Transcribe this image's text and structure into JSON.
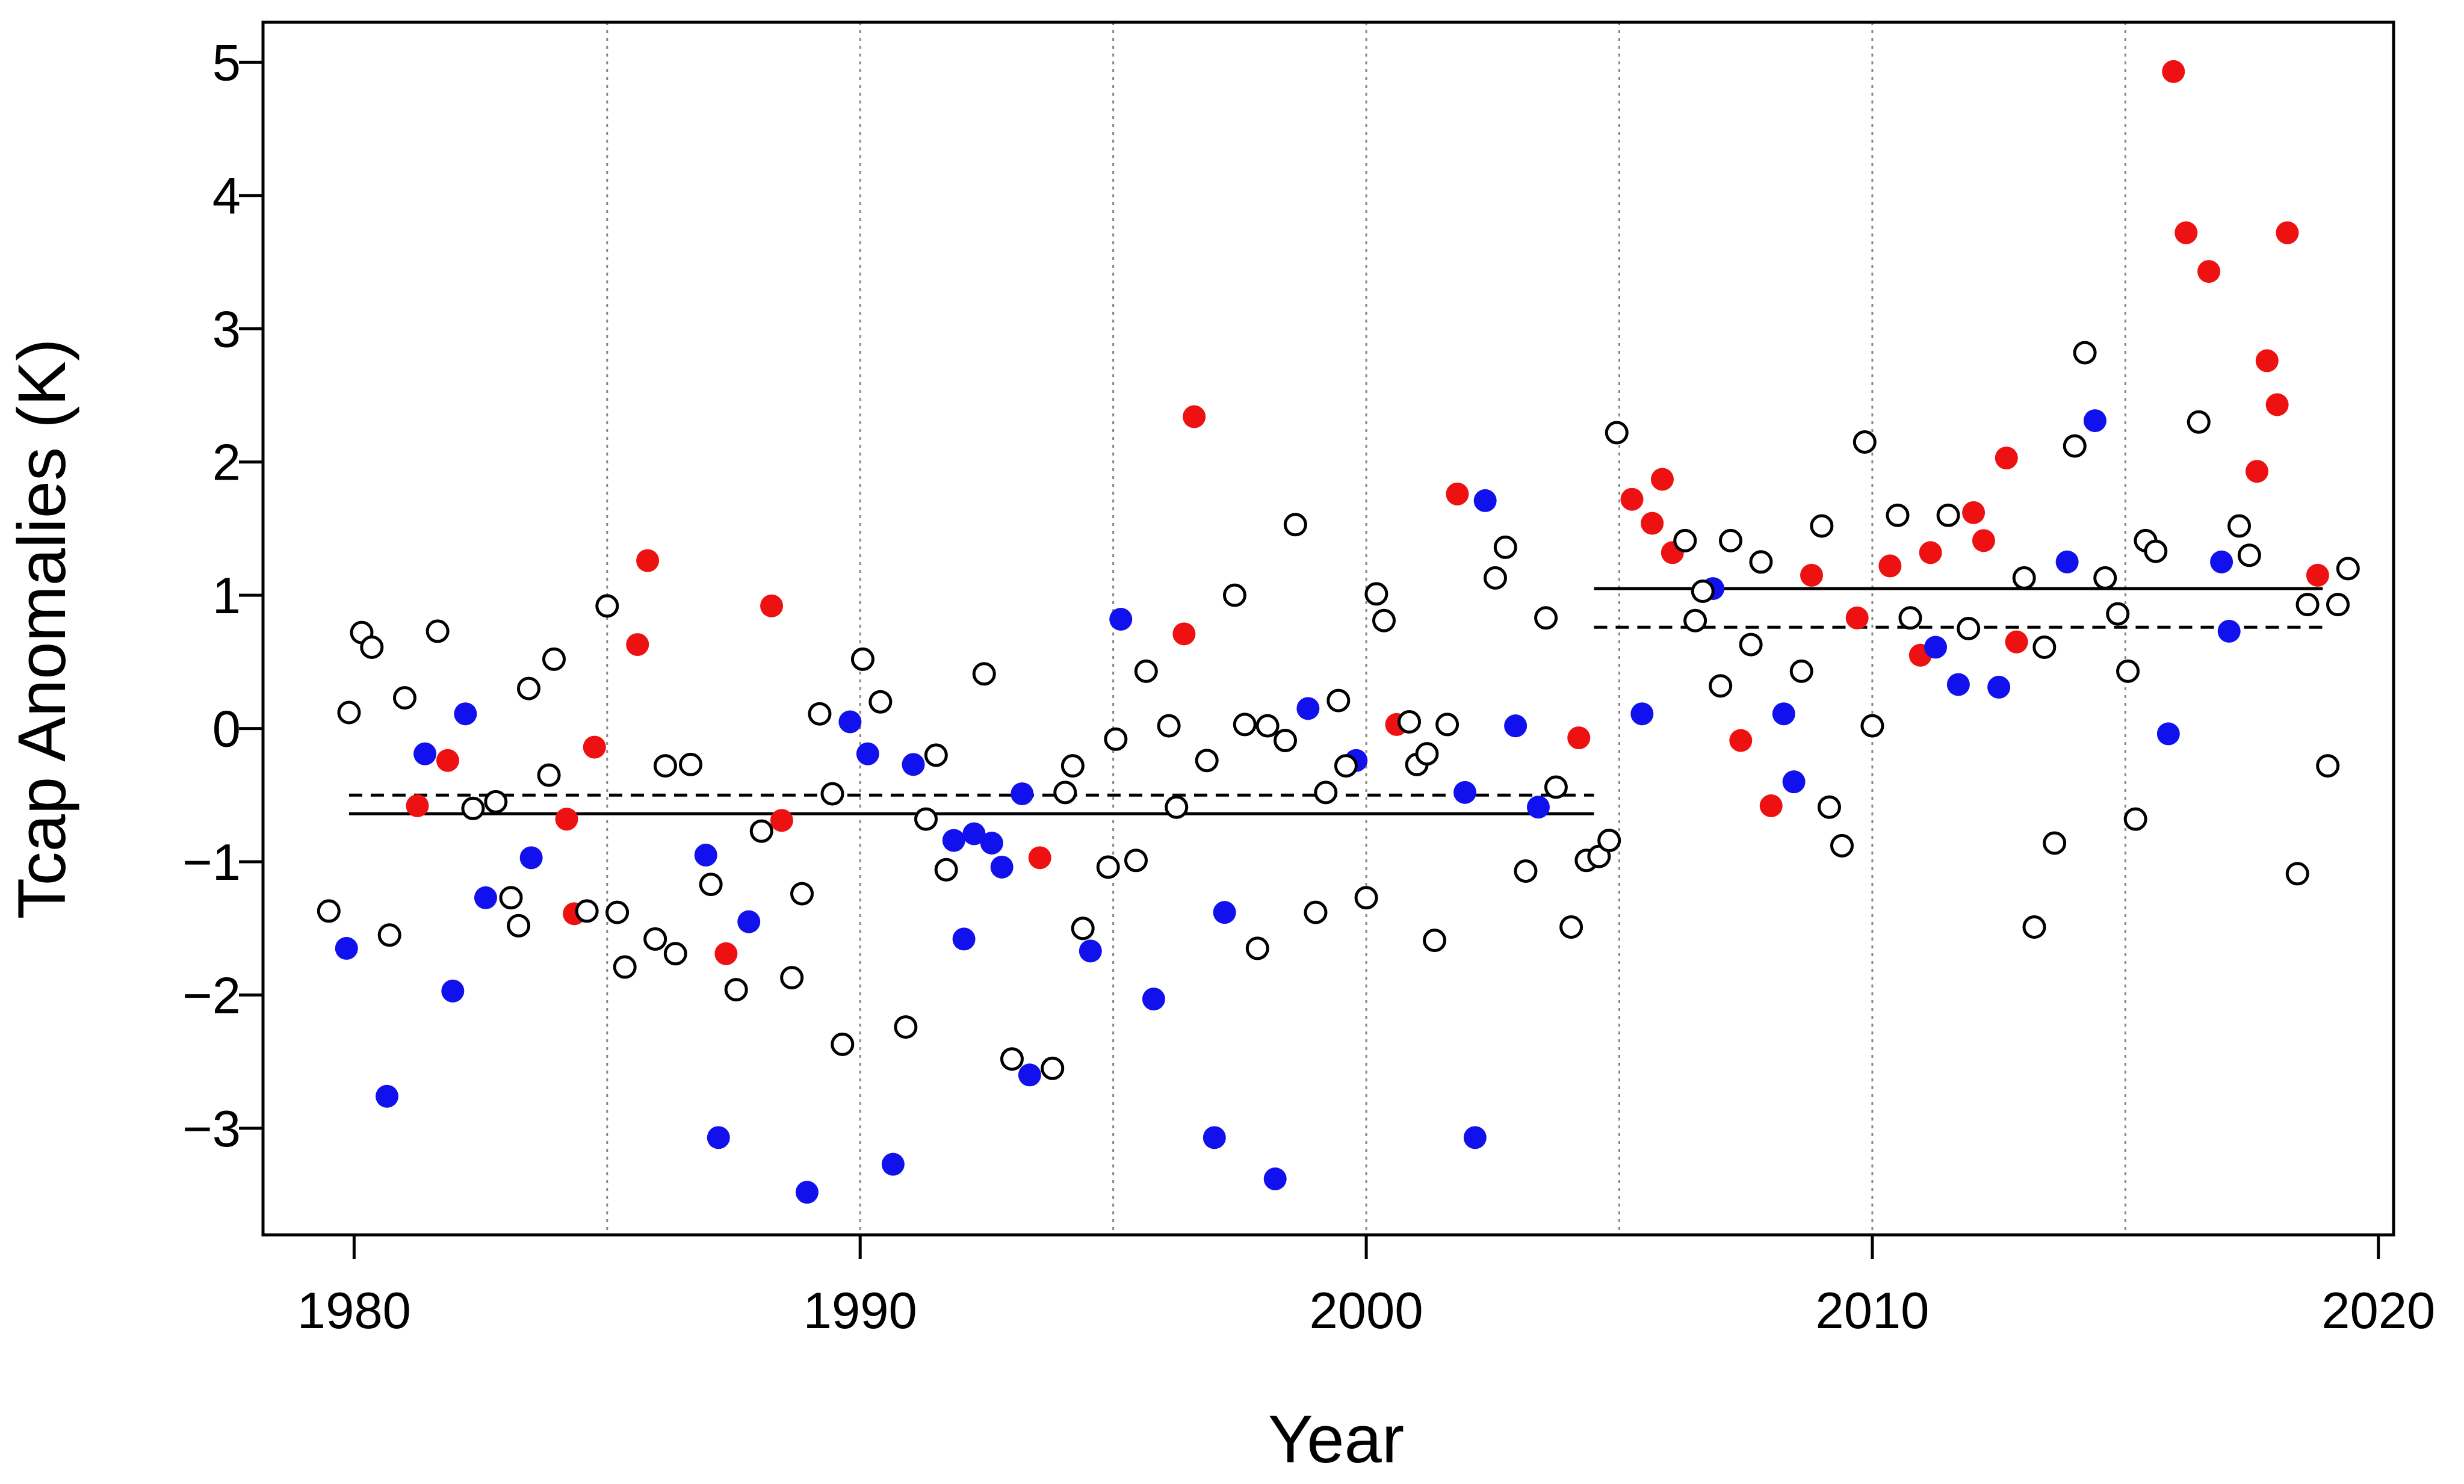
{
  "chart_data": {
    "type": "scatter",
    "xlabel": "Year",
    "ylabel": "Tcap Anomalies (K)",
    "xlim": [
      1978.2,
      2020.3
    ],
    "ylim": [
      -3.8,
      5.3
    ],
    "x_ticks": [
      "1980",
      "1990",
      "2000",
      "2010",
      "2020"
    ],
    "y_ticks": [
      "5",
      "4",
      "3",
      "2",
      "1",
      "0",
      "−1",
      "−2",
      "−3"
    ],
    "grid": "vertical dotted at 1985, 1990, 1995, 2000, 2005, 2010, 2015",
    "colors": {
      "red": "#ee1111",
      "blue": "#1111ee",
      "open": "#000000"
    },
    "series": [
      {
        "style": "red-filled",
        "points": [
          [
            1981.25,
            -0.58
          ],
          [
            1981.85,
            -0.24
          ],
          [
            1984.2,
            -0.68
          ],
          [
            1984.35,
            -1.39
          ],
          [
            1984.75,
            -0.14
          ],
          [
            1985.6,
            0.63
          ],
          [
            1985.8,
            1.26
          ],
          [
            1987.35,
            -1.69
          ],
          [
            1988.25,
            0.92
          ],
          [
            1988.45,
            -0.69
          ],
          [
            1993.55,
            -0.97
          ],
          [
            1996.4,
            0.71
          ],
          [
            1996.6,
            2.34
          ],
          [
            2000.6,
            0.03
          ],
          [
            2001.8,
            1.76
          ],
          [
            2004.2,
            -0.07
          ],
          [
            2005.25,
            1.72
          ],
          [
            2005.65,
            1.54
          ],
          [
            2005.85,
            1.87
          ],
          [
            2006.05,
            1.32
          ],
          [
            2007.4,
            -0.09
          ],
          [
            2008.0,
            -0.58
          ],
          [
            2008.8,
            1.15
          ],
          [
            2009.7,
            0.83
          ],
          [
            2010.35,
            1.22
          ],
          [
            2010.95,
            0.55
          ],
          [
            2011.15,
            1.32
          ],
          [
            2012.0,
            1.62
          ],
          [
            2012.2,
            1.41
          ],
          [
            2012.65,
            2.03
          ],
          [
            2012.85,
            0.65
          ],
          [
            2015.95,
            4.93
          ],
          [
            2016.2,
            3.72
          ],
          [
            2016.65,
            3.43
          ],
          [
            2017.6,
            1.93
          ],
          [
            2017.8,
            2.76
          ],
          [
            2018.0,
            2.43
          ],
          [
            2018.2,
            3.72
          ],
          [
            2018.8,
            1.15
          ]
        ]
      },
      {
        "style": "blue-filled",
        "points": [
          [
            1979.85,
            -1.65
          ],
          [
            1980.65,
            -2.76
          ],
          [
            1981.4,
            -0.19
          ],
          [
            1981.95,
            -1.97
          ],
          [
            1982.2,
            0.11
          ],
          [
            1982.6,
            -1.27
          ],
          [
            1983.5,
            -0.97
          ],
          [
            1986.95,
            -0.95
          ],
          [
            1987.2,
            -3.07
          ],
          [
            1987.8,
            -1.45
          ],
          [
            1988.95,
            -3.48
          ],
          [
            1989.8,
            0.05
          ],
          [
            1990.15,
            -0.19
          ],
          [
            1990.65,
            -3.27
          ],
          [
            1991.05,
            -0.27
          ],
          [
            1991.85,
            -0.84
          ],
          [
            1992.05,
            -1.58
          ],
          [
            1992.25,
            -0.79
          ],
          [
            1992.6,
            -0.86
          ],
          [
            1992.8,
            -1.04
          ],
          [
            1993.2,
            -0.49
          ],
          [
            1993.35,
            -2.6
          ],
          [
            1994.55,
            -1.67
          ],
          [
            1995.15,
            0.82
          ],
          [
            1995.8,
            -2.03
          ],
          [
            1997.0,
            -3.07
          ],
          [
            1997.2,
            -1.38
          ],
          [
            1998.2,
            -3.38
          ],
          [
            1998.85,
            0.15
          ],
          [
            1999.8,
            -0.24
          ],
          [
            2001.95,
            -0.48
          ],
          [
            2002.15,
            -3.07
          ],
          [
            2002.35,
            1.71
          ],
          [
            2002.95,
            0.02
          ],
          [
            2003.4,
            -0.59
          ],
          [
            2005.45,
            0.11
          ],
          [
            2006.85,
            1.05
          ],
          [
            2008.25,
            0.11
          ],
          [
            2008.45,
            -0.4
          ],
          [
            2011.25,
            0.61
          ],
          [
            2011.7,
            0.33
          ],
          [
            2012.5,
            0.31
          ],
          [
            2013.85,
            1.25
          ],
          [
            2014.4,
            2.31
          ],
          [
            2015.85,
            -0.04
          ],
          [
            2016.9,
            1.25
          ],
          [
            2017.05,
            0.73
          ]
        ]
      },
      {
        "style": "open-circle",
        "points": [
          [
            1979.5,
            -1.37
          ],
          [
            1979.9,
            0.12
          ],
          [
            1980.15,
            0.72
          ],
          [
            1980.35,
            0.61
          ],
          [
            1980.7,
            -1.55
          ],
          [
            1981.0,
            0.23
          ],
          [
            1981.65,
            0.73
          ],
          [
            1982.35,
            -0.6
          ],
          [
            1982.8,
            -0.55
          ],
          [
            1983.1,
            -1.27
          ],
          [
            1983.25,
            -1.48
          ],
          [
            1983.45,
            0.3
          ],
          [
            1983.85,
            -0.35
          ],
          [
            1983.95,
            0.52
          ],
          [
            1984.6,
            -1.37
          ],
          [
            1985.0,
            0.92
          ],
          [
            1985.2,
            -1.38
          ],
          [
            1985.35,
            -1.79
          ],
          [
            1985.95,
            -1.58
          ],
          [
            1986.15,
            -0.28
          ],
          [
            1986.35,
            -1.69
          ],
          [
            1986.65,
            -0.27
          ],
          [
            1987.05,
            -1.17
          ],
          [
            1987.55,
            -1.96
          ],
          [
            1988.05,
            -0.77
          ],
          [
            1988.65,
            -1.87
          ],
          [
            1988.85,
            -1.24
          ],
          [
            1989.2,
            0.11
          ],
          [
            1989.45,
            -0.49
          ],
          [
            1989.65,
            -2.37
          ],
          [
            1990.05,
            0.52
          ],
          [
            1990.4,
            0.2
          ],
          [
            1990.9,
            -2.24
          ],
          [
            1991.3,
            -0.68
          ],
          [
            1991.5,
            -0.2
          ],
          [
            1991.7,
            -1.06
          ],
          [
            1992.45,
            0.41
          ],
          [
            1993.0,
            -2.48
          ],
          [
            1993.8,
            -2.55
          ],
          [
            1994.05,
            -0.48
          ],
          [
            1994.2,
            -0.28
          ],
          [
            1994.4,
            -1.5
          ],
          [
            1994.9,
            -1.04
          ],
          [
            1995.05,
            -0.08
          ],
          [
            1995.45,
            -0.99
          ],
          [
            1995.65,
            0.43
          ],
          [
            1996.1,
            0.02
          ],
          [
            1996.25,
            -0.59
          ],
          [
            1996.85,
            -0.24
          ],
          [
            1997.4,
            1.0
          ],
          [
            1997.6,
            0.03
          ],
          [
            1997.85,
            -1.65
          ],
          [
            1998.05,
            0.02
          ],
          [
            1998.4,
            -0.09
          ],
          [
            1998.6,
            1.53
          ],
          [
            1999.0,
            -1.38
          ],
          [
            1999.2,
            -0.48
          ],
          [
            1999.45,
            0.21
          ],
          [
            1999.6,
            -0.28
          ],
          [
            2000.0,
            -1.27
          ],
          [
            2000.2,
            1.01
          ],
          [
            2000.35,
            0.81
          ],
          [
            2000.85,
            0.05
          ],
          [
            2001.0,
            -0.27
          ],
          [
            2001.2,
            -0.19
          ],
          [
            2001.35,
            -1.59
          ],
          [
            2001.6,
            0.03
          ],
          [
            2002.55,
            1.13
          ],
          [
            2002.75,
            1.36
          ],
          [
            2003.15,
            -1.07
          ],
          [
            2003.55,
            0.83
          ],
          [
            2003.75,
            -0.44
          ],
          [
            2004.05,
            -1.49
          ],
          [
            2004.35,
            -0.99
          ],
          [
            2004.6,
            -0.96
          ],
          [
            2004.8,
            -0.84
          ],
          [
            2004.95,
            2.22
          ],
          [
            2006.3,
            1.41
          ],
          [
            2006.5,
            0.81
          ],
          [
            2006.65,
            1.03
          ],
          [
            2007.0,
            0.32
          ],
          [
            2007.2,
            1.41
          ],
          [
            2007.6,
            0.63
          ],
          [
            2007.8,
            1.25
          ],
          [
            2008.6,
            0.43
          ],
          [
            2009.0,
            1.52
          ],
          [
            2009.15,
            -0.59
          ],
          [
            2009.4,
            -0.88
          ],
          [
            2009.85,
            2.15
          ],
          [
            2010.0,
            0.02
          ],
          [
            2010.5,
            1.6
          ],
          [
            2010.75,
            0.83
          ],
          [
            2011.5,
            1.6
          ],
          [
            2011.9,
            0.75
          ],
          [
            2013.0,
            1.13
          ],
          [
            2013.2,
            -1.49
          ],
          [
            2013.4,
            0.61
          ],
          [
            2013.6,
            -0.86
          ],
          [
            2014.0,
            2.12
          ],
          [
            2014.2,
            2.82
          ],
          [
            2014.6,
            1.13
          ],
          [
            2014.85,
            0.86
          ],
          [
            2015.05,
            0.43
          ],
          [
            2015.2,
            -0.68
          ],
          [
            2015.4,
            1.41
          ],
          [
            2015.6,
            1.33
          ],
          [
            2016.45,
            2.3
          ],
          [
            2017.25,
            1.52
          ],
          [
            2017.45,
            1.3
          ],
          [
            2018.4,
            -1.09
          ],
          [
            2018.6,
            0.93
          ],
          [
            2019.0,
            -0.28
          ],
          [
            2019.2,
            0.93
          ],
          [
            2019.4,
            1.2
          ]
        ]
      }
    ],
    "reference_lines": [
      {
        "style": "solid",
        "x": [
          1979.9,
          2004.5
        ],
        "y": -0.64
      },
      {
        "style": "dashed",
        "x": [
          1979.9,
          2004.5
        ],
        "y": -0.5
      },
      {
        "style": "solid",
        "x": [
          2004.5,
          2018.9
        ],
        "y": 1.05
      },
      {
        "style": "dashed",
        "x": [
          2004.5,
          2018.9
        ],
        "y": 0.76
      }
    ]
  }
}
